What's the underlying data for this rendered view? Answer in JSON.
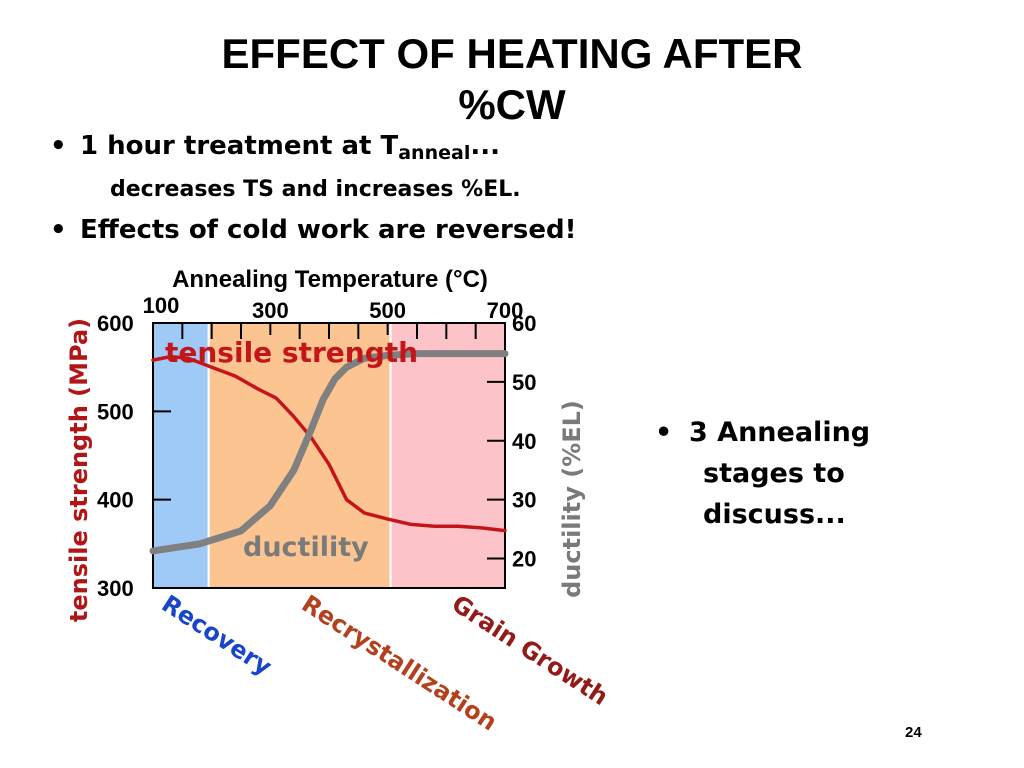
{
  "slide": {
    "title_line1": "EFFECT OF HEATING AFTER",
    "title_line2": "%CW",
    "bullet_glyph": "•",
    "bullet1_main": "1 hour treatment at T",
    "bullet1_sub": "anneal",
    "bullet1_tail": "...",
    "bullet1_cont": "decreases TS and increases %EL.",
    "bullet2": "Effects of cold work are reversed!",
    "bullet3_line1": "3 Annealing",
    "bullet3_line2": "stages to",
    "bullet3_line3": "discuss...",
    "page_number": "24"
  },
  "chart_data": {
    "type": "line",
    "title": "Annealing Temperature (°C)",
    "x_ticks": [
      100,
      300,
      500,
      700
    ],
    "xlim": [
      100,
      700
    ],
    "ylabel_left": "tensile strength (MPa)",
    "ylabel_right": "ductility (%EL)",
    "y_left_ticks": [
      300,
      400,
      500,
      600
    ],
    "y_left_lim": [
      300,
      600
    ],
    "y_right_ticks": [
      20,
      30,
      40,
      50,
      60
    ],
    "y_right_lim": [
      15,
      60
    ],
    "regions": [
      {
        "name": "Recovery",
        "x_start": 100,
        "x_end": 195,
        "color": "#9fcaf8",
        "label_color": "#1846c8"
      },
      {
        "name": "Recrystallization",
        "x_start": 195,
        "x_end": 505,
        "color": "#fbc490",
        "label_color": "#b3411d"
      },
      {
        "name": "Grain Growth",
        "x_start": 505,
        "x_end": 700,
        "color": "#fcc4c8",
        "label_color": "#921a17"
      }
    ],
    "series": [
      {
        "name": "tensile strength",
        "axis": "left",
        "color": "#c4161a",
        "x": [
          100,
          130,
          160,
          200,
          240,
          280,
          310,
          340,
          370,
          400,
          430,
          460,
          500,
          540,
          580,
          620,
          660,
          700
        ],
        "y": [
          558,
          562,
          560,
          550,
          540,
          525,
          515,
          494,
          470,
          440,
          400,
          385,
          378,
          372,
          370,
          370,
          368,
          365
        ]
      },
      {
        "name": "ductility",
        "axis": "right",
        "color": "#808080",
        "x": [
          100,
          180,
          250,
          300,
          340,
          370,
          390,
          410,
          430,
          460,
          500,
          550,
          600,
          700
        ],
        "y": [
          21.3,
          22.5,
          24.7,
          29,
          35,
          42,
          47,
          50.5,
          52.5,
          54,
          54.5,
          54.8,
          54.8,
          54.8
        ]
      }
    ]
  }
}
